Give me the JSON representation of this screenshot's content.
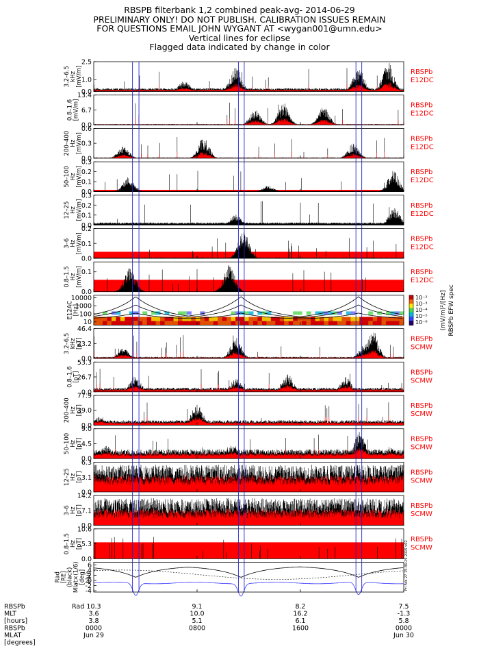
{
  "header": {
    "title": "RBSPB filterbank 1,2 combined peak-avg- 2014-06-29",
    "line2": "PRELIMINARY ONLY! DO NOT PUBLISH. CALIBRATION ISSUES REMAIN",
    "line3": "FOR QUESTIONS EMAIL JOHN WYGANT AT <wygan001@umn.edu>",
    "line4": "Vertical lines for eclipse",
    "line5": "Flagged data indicated by change in color"
  },
  "side_stamp": "Fri Feb 27 15:36:29 2015 v02",
  "colorbar": {
    "ticks": [
      "10⁻²",
      "10⁻³",
      "10⁻⁴",
      "10⁻⁵",
      "10⁻⁶"
    ],
    "label1": "(mV/m)²/[Hz]",
    "label2": "RBSPb EFW spec"
  },
  "bottom_axis": {
    "row_labels": [
      "RBSPb",
      "MLT",
      "[hours]",
      "RBSPb",
      "MLAT",
      "[degrees]"
    ],
    "columns": [
      {
        "rad": "10.3",
        "mlt": "3.6",
        "mlat": "3.8",
        "time": "0000",
        "date": "Jun 29"
      },
      {
        "rad": "9.1",
        "mlt": "10.0",
        "mlat": "5.1",
        "time": "0800",
        "date": ""
      },
      {
        "rad": "8.2",
        "mlt": "16.2",
        "mlat": "6.1",
        "time": "1600",
        "date": ""
      },
      {
        "rad": "7.5",
        "mlt": "-1.3",
        "mlat": "5.8",
        "time": "0000",
        "date": "Jun 30"
      }
    ]
  },
  "chart_data": {
    "type": "line",
    "xlabel": "",
    "xlim_hours": [
      0,
      24
    ],
    "x_ticks_hours": [
      0,
      8,
      16,
      24
    ],
    "eclipse_lines_hours": [
      3.0,
      3.5,
      11.2,
      11.65,
      20.3,
      20.75
    ],
    "panels": [
      {
        "label": "3.2–6.5 kHz [mV/m]",
        "instrument": [
          "RBSPb",
          "E12DC"
        ],
        "ticks": [
          "2.5",
          "1.0",
          "0.0"
        ],
        "tick_values": [
          2.5,
          1.0,
          0.0
        ],
        "ymax": 2.5,
        "bursts": [
          [
            7,
            0.35
          ],
          [
            11.0,
            0.85
          ],
          [
            20.5,
            0.8
          ],
          [
            22.8,
            1.0
          ]
        ],
        "base_black": 0.08,
        "base_red": 0.02,
        "red_band": 0
      },
      {
        "label": "0.8–1.6 [mV/m]",
        "instrument": [
          "RBSPb",
          "E12DC"
        ],
        "ticks": [
          "13.4",
          "6.7",
          "0.0"
        ],
        "tick_values": [
          13.4,
          6.7,
          0.0
        ],
        "ymax": 13.4,
        "bursts": [
          [
            12.5,
            0.5
          ],
          [
            14.7,
            0.75
          ],
          [
            17.8,
            0.6
          ]
        ],
        "base_black": 0.02,
        "base_red": 0.01,
        "red_band": 0
      },
      {
        "label": "200–400 Hz [mV/m]",
        "instrument": [
          "RBSPb",
          "E12DC"
        ],
        "ticks": [
          "0.6",
          "0.3",
          "0.0"
        ],
        "tick_values": [
          0.6,
          0.3,
          0.0
        ],
        "ymax": 0.6,
        "bursts": [
          [
            2.3,
            0.4
          ],
          [
            8.5,
            0.7
          ],
          [
            20.1,
            0.5
          ]
        ],
        "base_black": 0.02,
        "base_red": 0.01,
        "red_band": 0
      },
      {
        "label": "50–100 Hz [mV/m]",
        "instrument": [
          "RBSPb",
          "E12DC"
        ],
        "ticks": [
          "0.3",
          "0.2",
          "0.1",
          "0.0"
        ],
        "tick_values": [
          0.3,
          0.2,
          0.1,
          0.0
        ],
        "ymax": 0.3,
        "bursts": [
          [
            2.7,
            0.5
          ],
          [
            13.5,
            0.2
          ],
          [
            23.2,
            0.7
          ]
        ],
        "base_black": 0.01,
        "base_red": 0.005,
        "red_band": 0.06
      },
      {
        "label": "12–25 Hz [mV/m]",
        "instrument": [
          "RBSPb",
          "E12DC"
        ],
        "ticks": [
          "0.3",
          "0.2",
          "0.1",
          "0.0"
        ],
        "tick_values": [
          0.3,
          0.2,
          0.1,
          0.0
        ],
        "ymax": 0.3,
        "bursts": [
          [
            11.0,
            0.35
          ],
          [
            23.3,
            0.6
          ]
        ],
        "base_black": 0.06,
        "base_red": 0.02,
        "red_band": 0.04
      },
      {
        "label": "3–6 Hz [mV/m]",
        "instrument": [
          "RBSPb",
          "E12DC"
        ],
        "ticks": [
          "0.2",
          "0.1",
          "0.0"
        ],
        "tick_values": [
          0.2,
          0.1,
          0.0
        ],
        "ymax": 0.2,
        "bursts": [
          [
            11.6,
            0.9
          ]
        ],
        "base_black": 0.02,
        "base_red": 0.01,
        "red_band": 0.22
      },
      {
        "label": "0.8–1.5 Hz [mV/m]",
        "instrument": [
          "RBSPb",
          "E12DC"
        ],
        "ticks": [
          "0.1",
          "0.0"
        ],
        "tick_values": [
          0.1,
          0.0
        ],
        "ymax": 0.15,
        "bursts": [
          [
            2.8,
            0.8
          ],
          [
            10.5,
            0.9
          ]
        ],
        "base_black": 0.0,
        "base_red": 0.0,
        "red_band": 0.4
      },
      {
        "label": "E12AC [Hz]",
        "instrument": [],
        "ticks": [
          "10000",
          "1000",
          "100",
          "10"
        ],
        "tick_values": [
          10000,
          1000,
          100,
          10
        ],
        "ymax": 20000,
        "spectrogram": true
      },
      {
        "label": "3.2–6.5 kHz [pT]",
        "instrument": [
          "RBSPb",
          "SCMW"
        ],
        "ticks": [
          "46.4",
          "23.2",
          "0.0"
        ],
        "tick_values": [
          46.4,
          23.2,
          0.0
        ],
        "ymax": 46.4,
        "bursts": [
          [
            2.3,
            0.35
          ],
          [
            11.0,
            0.7
          ],
          [
            21.0,
            0.5
          ],
          [
            21.6,
            1.0
          ]
        ],
        "base_black": 0.04,
        "base_red": 0.02,
        "red_band": 0
      },
      {
        "label": "0.8–1.6 [pT]",
        "instrument": [
          "RBSPb",
          "SCMW"
        ],
        "ticks": [
          "53.3",
          "26.7",
          "0.0"
        ],
        "tick_values": [
          53.3,
          26.7,
          0.0
        ],
        "ymax": 53.3,
        "bursts": [
          [
            3.2,
            0.55
          ],
          [
            11.0,
            0.45
          ],
          [
            15.0,
            0.6
          ],
          [
            19.5,
            0.5
          ]
        ],
        "base_black": 0.1,
        "base_red": 0.05,
        "red_band": 0
      },
      {
        "label": "200–400 Hz [pT]",
        "instrument": [
          "RBSPb",
          "SCMW"
        ],
        "ticks": [
          "77.9",
          "39.0",
          "0.0"
        ],
        "tick_values": [
          77.9,
          39.0,
          0.0
        ],
        "ymax": 77.9,
        "bursts": [
          [
            0.5,
            0.3
          ],
          [
            8.0,
            0.75
          ]
        ],
        "base_black": 0.12,
        "base_red": 0.06,
        "red_band": 0
      },
      {
        "label": "50–100 Hz [pT]",
        "instrument": [
          "RBSPb",
          "SCMW"
        ],
        "ticks": [
          "9.0",
          "4.5",
          "0.0"
        ],
        "tick_values": [
          9.0,
          4.5,
          0.0
        ],
        "ymax": 9.0,
        "bursts": [
          [
            1.0,
            0.45
          ],
          [
            10.8,
            0.5
          ],
          [
            20.6,
            0.9
          ],
          [
            23.0,
            0.4
          ]
        ],
        "base_black": 0.22,
        "base_red": 0.08,
        "red_band": 0
      },
      {
        "label": "12–25 Hz [pT]",
        "instrument": [
          "RBSPb",
          "SCMW"
        ],
        "ticks": [
          "6.3",
          "3.1",
          "0.0"
        ],
        "tick_values": [
          6.3,
          3.1,
          0.0
        ],
        "ymax": 6.3,
        "bursts": [
          [
            23.5,
            0.95
          ]
        ],
        "base_black": 0.65,
        "base_red": 0.45,
        "red_band": 0
      },
      {
        "label": "3–6 Hz [pT]",
        "instrument": [
          "RBSPb",
          "SCMW"
        ],
        "ticks": [
          "14.2",
          "7.1",
          "0.0"
        ],
        "tick_values": [
          14.2,
          7.1,
          0.0
        ],
        "ymax": 14.2,
        "bursts": [],
        "base_black": 0.65,
        "base_red": 0.5,
        "red_band": 0
      },
      {
        "label": "0.8–1.5 Hz [pT]",
        "instrument": [
          "RBSPb",
          "SCMW"
        ],
        "ticks": [
          "10.6",
          "5.3",
          "0.0"
        ],
        "tick_values": [
          10.6,
          5.3,
          0.0
        ],
        "ymax": 10.6,
        "bursts": [],
        "base_black": 0.0,
        "base_red": 0.5,
        "red_band": 0.55
      },
      {
        "label": "Rad [RE] (black) Mlat×(1/6) [deg] blue",
        "instrument": [],
        "ticks": [
          "6",
          "4",
          "2",
          "0",
          "-2",
          "-4"
        ],
        "tick_values": [
          6,
          4,
          2,
          0,
          -2,
          -4
        ],
        "ymax": 7,
        "ephem": true
      }
    ]
  }
}
